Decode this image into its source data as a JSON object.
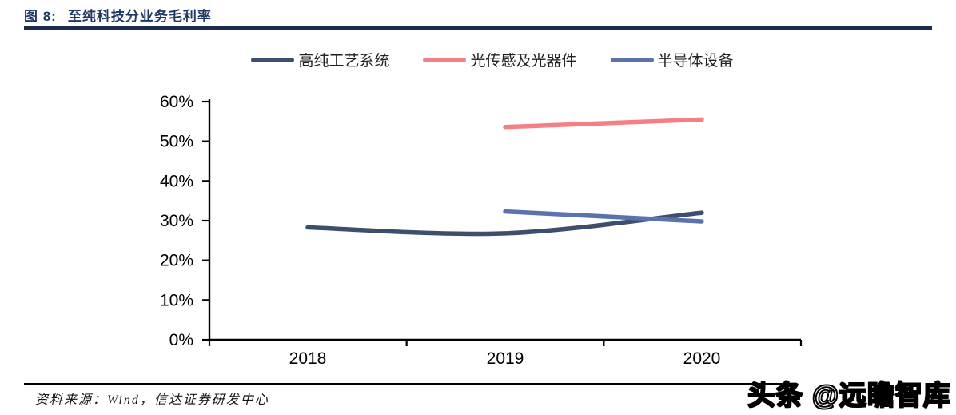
{
  "header": {
    "figure_label": "图 8:",
    "title": "至纯科技分业务毛利率"
  },
  "footer": {
    "source": "资料来源：Wind，信达证券研发中心"
  },
  "watermark": {
    "text": "头条 @远瞻智库"
  },
  "colors": {
    "title_navy": "#1F3864",
    "rule_navy": "#1B2B4C",
    "axis_black": "#000000"
  },
  "chart_data": {
    "type": "line",
    "title": "至纯科技分业务毛利率",
    "categories": [
      "2018",
      "2019",
      "2020"
    ],
    "series": [
      {
        "name": "高纯工艺系统",
        "color": "#3E4E6D",
        "values": [
          28.3,
          26.8,
          32.0
        ],
        "smooth": true
      },
      {
        "name": "光传感及光器件",
        "color": "#F48086",
        "values": [
          null,
          53.6,
          55.5
        ],
        "smooth": true
      },
      {
        "name": "半导体设备",
        "color": "#5A73AD",
        "values": [
          null,
          32.3,
          29.8
        ],
        "smooth": true
      }
    ],
    "xlabel": "",
    "ylabel": "",
    "ylim": [
      0,
      60
    ],
    "yticks": [
      "0%",
      "10%",
      "20%",
      "30%",
      "40%",
      "50%",
      "60%"
    ],
    "grid": false,
    "legend_position": "top"
  }
}
